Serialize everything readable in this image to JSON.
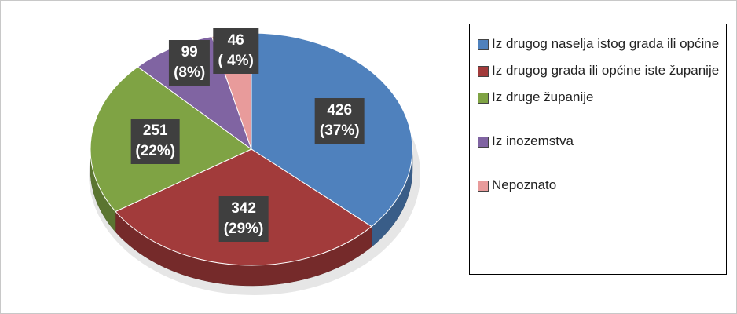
{
  "chart_data": {
    "type": "pie",
    "categories": [
      "Iz drugog naselja istog grada ili općine",
      "Iz drugog grada ili općine iste županije",
      "Iz druge županije",
      "Iz inozemstva",
      "Nepoznato"
    ],
    "values": [
      426,
      342,
      251,
      99,
      46
    ],
    "value_labels": [
      "426\n(37%)",
      "342\n(29%)",
      "251\n(22%)",
      "99\n(8%)",
      "46\n( 4%)"
    ],
    "colors": [
      "#4f81bd",
      "#a23b3b",
      "#7fa344",
      "#8064a2",
      "#e89b9b"
    ],
    "legend": "right"
  }
}
